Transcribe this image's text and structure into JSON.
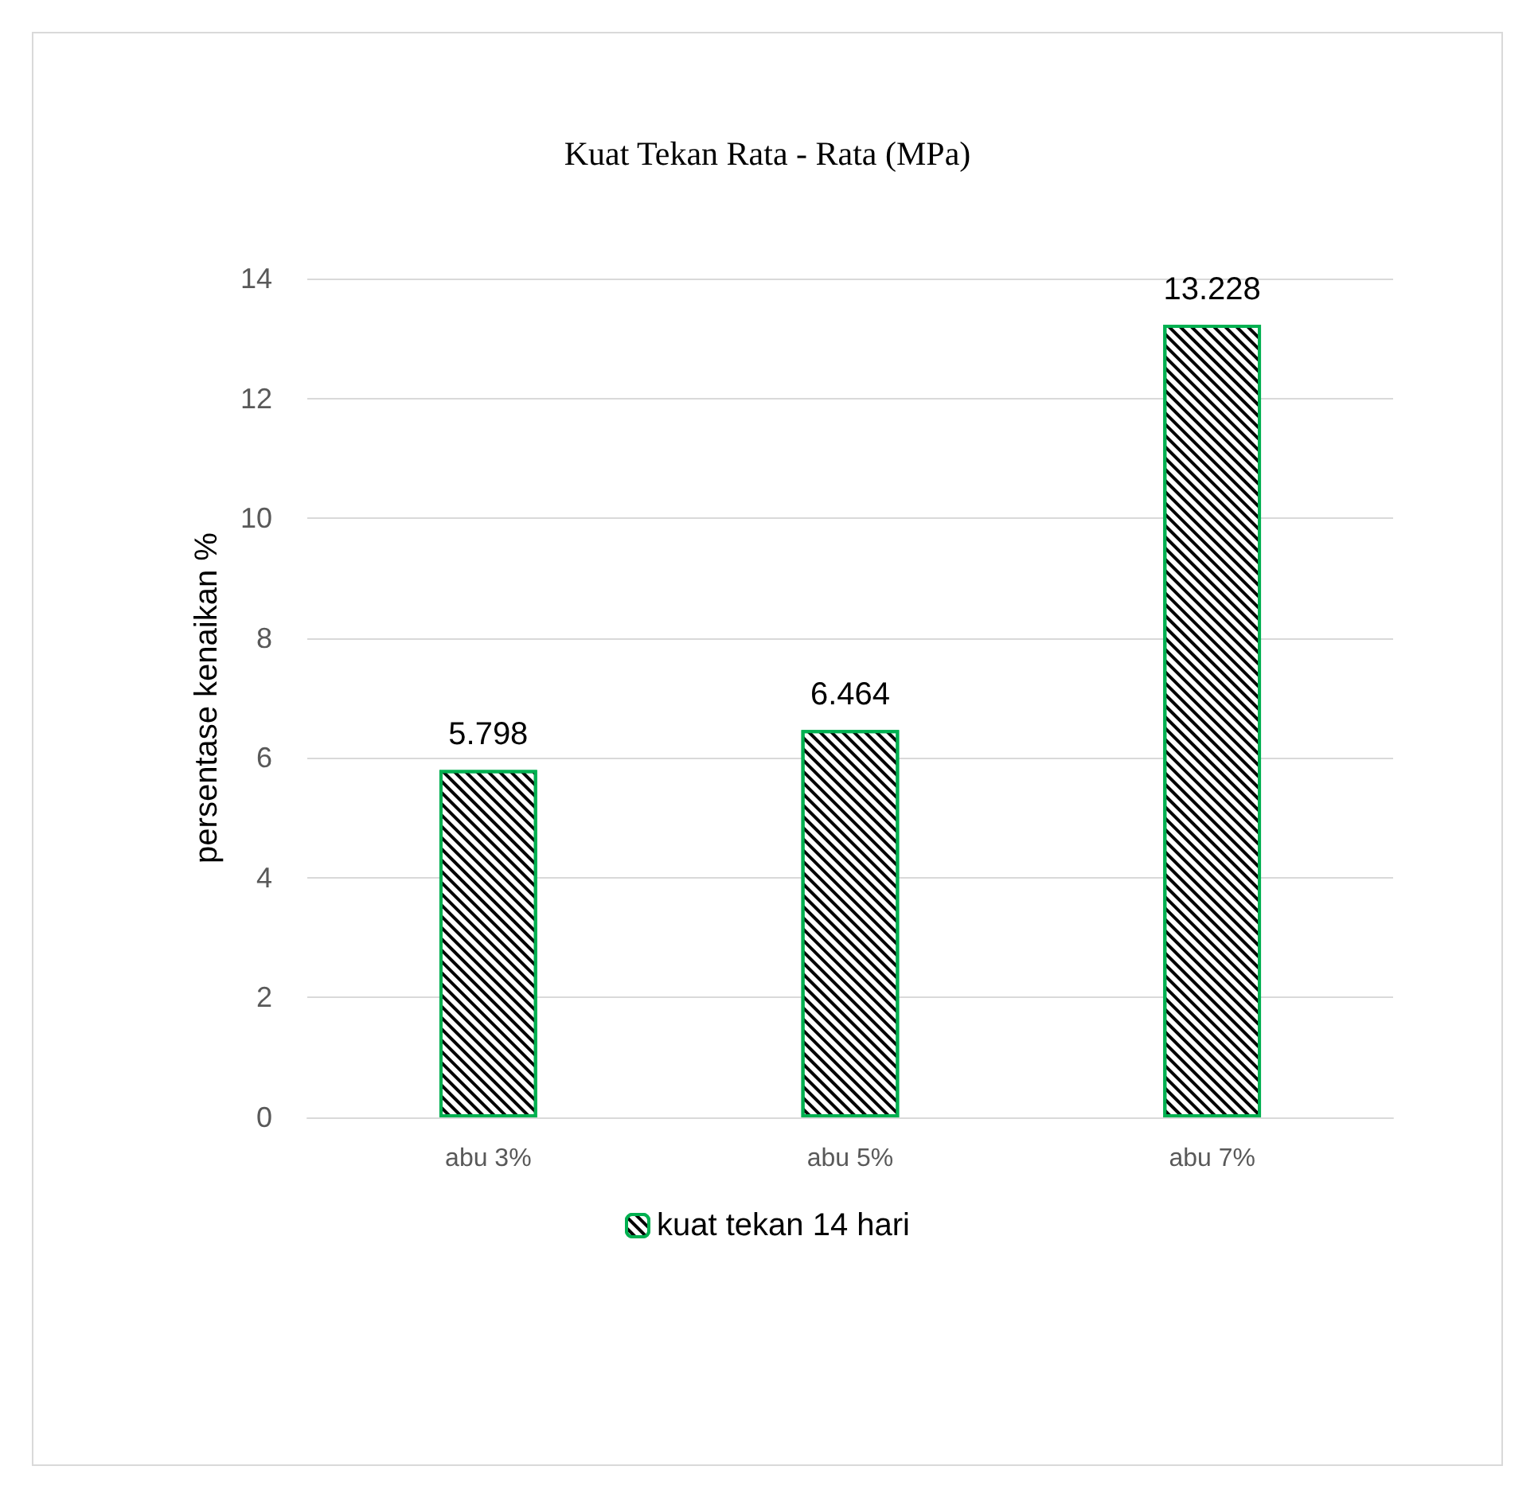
{
  "chart_data": {
    "type": "bar",
    "title": "Kuat Tekan Rata - Rata (MPa)",
    "ylabel": "persentase kenaikan %",
    "categories": [
      "abu 3%",
      "abu 5%",
      "abu 7%"
    ],
    "series": [
      {
        "name": "kuat tekan 14 hari",
        "color": "#00b050",
        "values": [
          5.798,
          6.464,
          13.228
        ]
      }
    ],
    "ylim": [
      0,
      14
    ],
    "yticks": [
      0,
      2,
      4,
      6,
      8,
      10,
      12,
      14
    ],
    "grid": "y",
    "legend": "bottom",
    "data_labels": true
  }
}
